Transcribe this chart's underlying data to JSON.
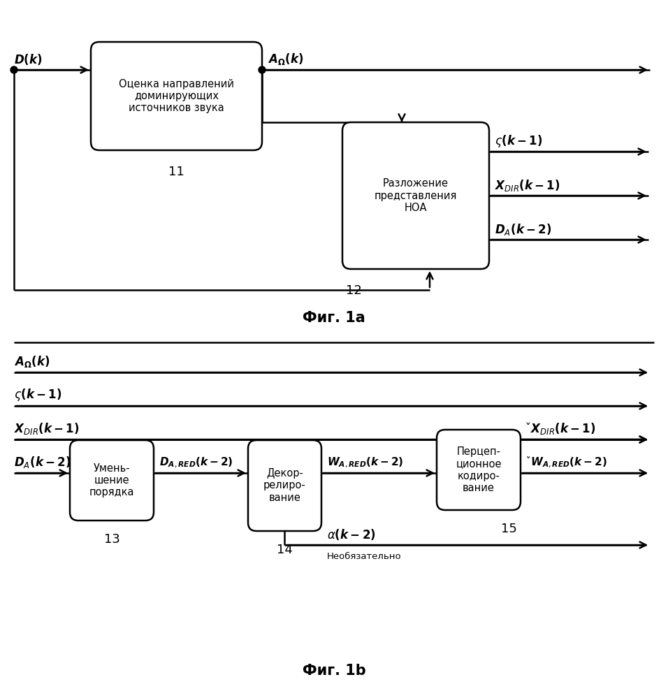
{
  "fig_width": 9.56,
  "fig_height": 9.99,
  "dpi": 100,
  "bg": "#ffffff",
  "lw": 1.8,
  "fig1a_title": "Фиг. 1a",
  "fig1b_title": "Фиг. 1b",
  "box11_label": "Оценка направлений\nдоминирующих\nисточников звука",
  "box12_label": "Разложение\nпредставления\nНОА",
  "box13_label": "Умень-\nшение\nпорядка",
  "box14_label": "Декор-\nрелиро-\nвание",
  "box15_label": "Перцеп-\nционное\nкодиро-\nвание",
  "neob": "Необязательно"
}
